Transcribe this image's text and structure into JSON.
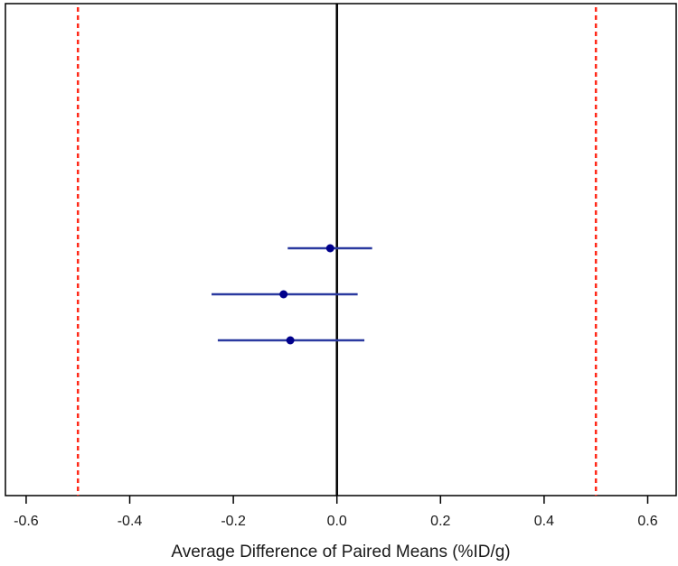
{
  "chart_data": {
    "type": "forest",
    "xlabel": "Average Difference of Paired Means (%ID/g)",
    "xlim": [
      -0.64,
      0.655
    ],
    "xticks": [
      -0.6,
      -0.4,
      -0.2,
      0.0,
      0.2,
      0.4,
      0.6
    ],
    "xtick_labels": [
      "-0.6",
      "-0.4",
      "-0.2",
      "0.0",
      "0.2",
      "0.4",
      "0.6"
    ],
    "zero_line": 0.0,
    "equivalence_bounds": [
      -0.5,
      0.5
    ],
    "grid": false,
    "points": [
      {
        "mean": -0.013,
        "lower": -0.095,
        "upper": 0.068
      },
      {
        "mean": -0.103,
        "lower": -0.242,
        "upper": 0.04
      },
      {
        "mean": -0.09,
        "lower": -0.23,
        "upper": 0.053
      }
    ],
    "colors": {
      "point": "#00008b",
      "interval": "#2b3aa0",
      "bounds": "#ff2a1a",
      "zero": "#000000"
    }
  }
}
